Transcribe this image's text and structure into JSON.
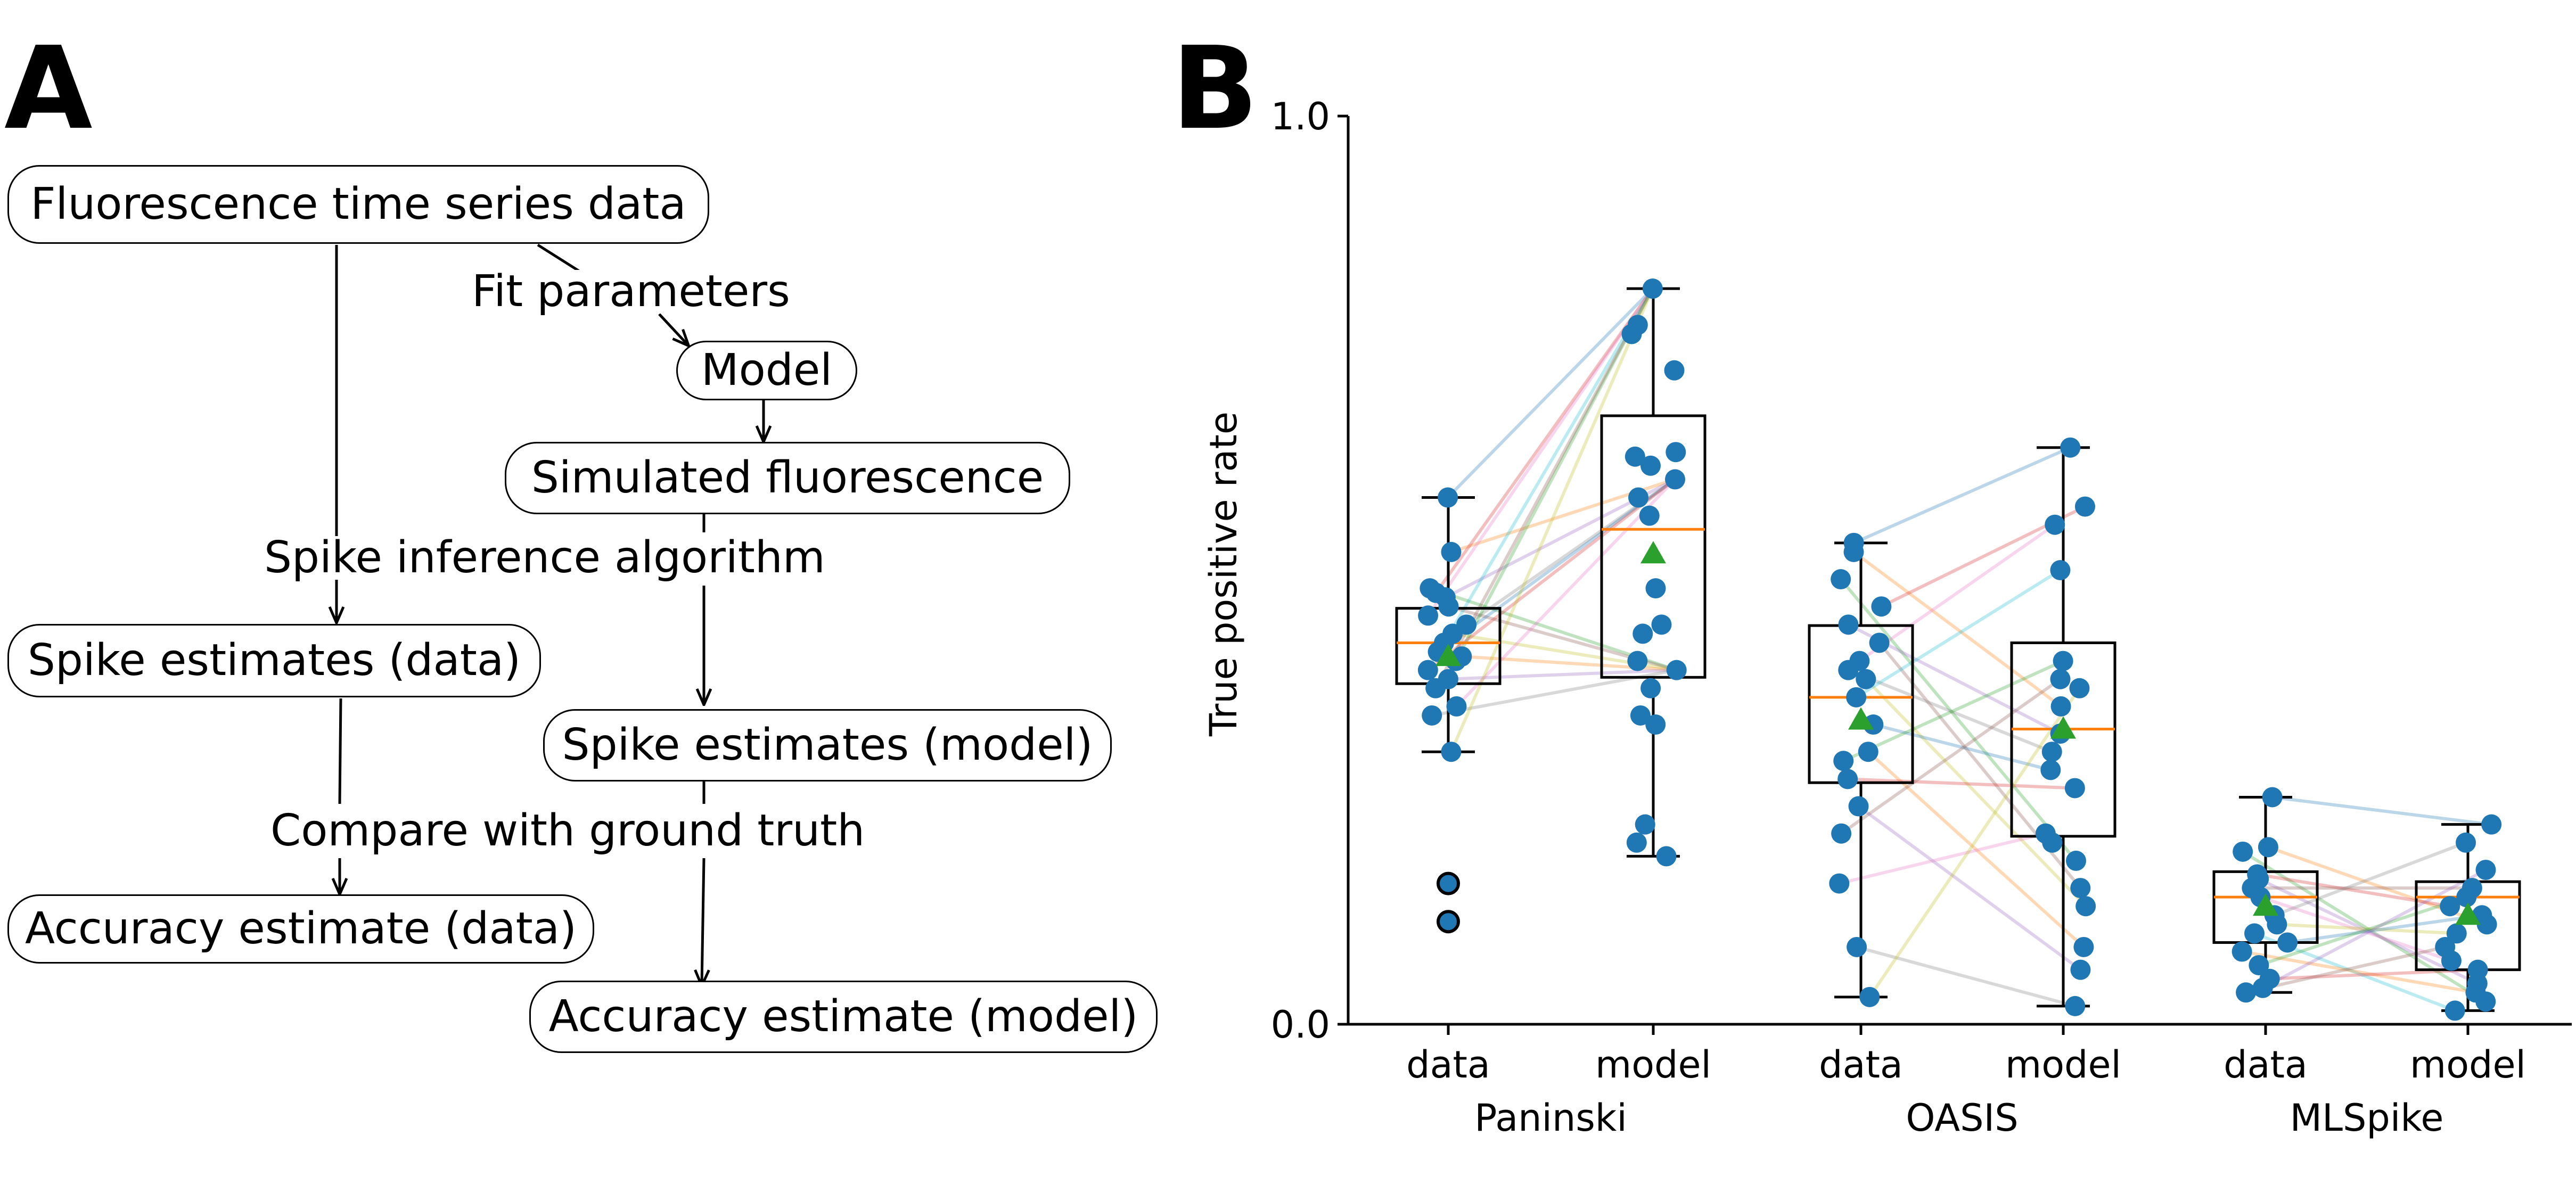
{
  "panel_a": {
    "letter": "A",
    "nodes": {
      "fluorescence_data": "Fluorescence time series data",
      "model": "Model",
      "simulated_fluorescence": "Simulated fluorescence",
      "spike_estimates_data": "Spike estimates (data)",
      "spike_estimates_model": "Spike estimates (model)",
      "accuracy_data": "Accuracy estimate (data)",
      "accuracy_model": "Accuracy estimate (model)"
    },
    "edge_labels": {
      "fit_parameters": "Fit parameters",
      "spike_inference": "Spike inference algorithm",
      "compare_ground_truth": "Compare with ground truth"
    }
  },
  "panel_b": {
    "letter": "B"
  },
  "colors": {
    "points": "#1f77b4",
    "median": "#ff7f0e",
    "mean": "#2ca02c"
  },
  "chart_data": {
    "type": "box",
    "ylabel": "True positive rate",
    "ylim": [
      0.0,
      1.0
    ],
    "yticks": [
      "0.0",
      "1.0"
    ],
    "groups": [
      {
        "name": "Paninski",
        "boxes": [
          {
            "label": "data",
            "q1": 0.375,
            "median": 0.42,
            "q3": 0.458,
            "whisker_low": 0.3,
            "whisker_high": 0.58,
            "mean": 0.405,
            "outliers": [
              0.155,
              0.113
            ],
            "points": [
              0.58,
              0.52,
              0.48,
              0.475,
              0.47,
              0.46,
              0.45,
              0.44,
              0.43,
              0.42,
              0.41,
              0.405,
              0.4,
              0.39,
              0.38,
              0.37,
              0.35,
              0.34,
              0.3
            ]
          },
          {
            "label": "model",
            "q1": 0.382,
            "median": 0.545,
            "q3": 0.67,
            "whisker_low": 0.185,
            "whisker_high": 0.81,
            "mean": 0.518,
            "outliers": [],
            "points": [
              0.81,
              0.77,
              0.76,
              0.72,
              0.63,
              0.625,
              0.615,
              0.6,
              0.58,
              0.56,
              0.48,
              0.44,
              0.43,
              0.4,
              0.39,
              0.37,
              0.34,
              0.33,
              0.22,
              0.2,
              0.185
            ]
          }
        ]
      },
      {
        "name": "OASIS",
        "boxes": [
          {
            "label": "data",
            "q1": 0.266,
            "median": 0.36,
            "q3": 0.439,
            "whisker_low": 0.03,
            "whisker_high": 0.53,
            "mean": 0.335,
            "outliers": [],
            "points": [
              0.53,
              0.52,
              0.49,
              0.46,
              0.44,
              0.42,
              0.4,
              0.39,
              0.38,
              0.36,
              0.33,
              0.3,
              0.29,
              0.27,
              0.24,
              0.21,
              0.155,
              0.085,
              0.03
            ]
          },
          {
            "label": "model",
            "q1": 0.207,
            "median": 0.325,
            "q3": 0.42,
            "whisker_low": 0.02,
            "whisker_high": 0.635,
            "mean": 0.325,
            "outliers": [],
            "points": [
              0.635,
              0.57,
              0.55,
              0.5,
              0.4,
              0.38,
              0.37,
              0.35,
              0.32,
              0.3,
              0.28,
              0.26,
              0.21,
              0.2,
              0.18,
              0.15,
              0.13,
              0.085,
              0.06,
              0.02
            ]
          }
        ]
      },
      {
        "name": "MLSpike",
        "boxes": [
          {
            "label": "data",
            "q1": 0.09,
            "median": 0.14,
            "q3": 0.168,
            "whisker_low": 0.035,
            "whisker_high": 0.25,
            "mean": 0.13,
            "outliers": [],
            "points": [
              0.25,
              0.195,
              0.19,
              0.165,
              0.16,
              0.15,
              0.14,
              0.12,
              0.11,
              0.1,
              0.09,
              0.08,
              0.065,
              0.05,
              0.04,
              0.035
            ]
          },
          {
            "label": "model",
            "q1": 0.06,
            "median": 0.14,
            "q3": 0.157,
            "whisker_low": 0.015,
            "whisker_high": 0.22,
            "mean": 0.12,
            "outliers": [],
            "points": [
              0.22,
              0.2,
              0.17,
              0.15,
              0.14,
              0.13,
              0.12,
              0.11,
              0.1,
              0.085,
              0.07,
              0.06,
              0.045,
              0.035,
              0.025,
              0.015
            ]
          }
        ]
      }
    ]
  }
}
